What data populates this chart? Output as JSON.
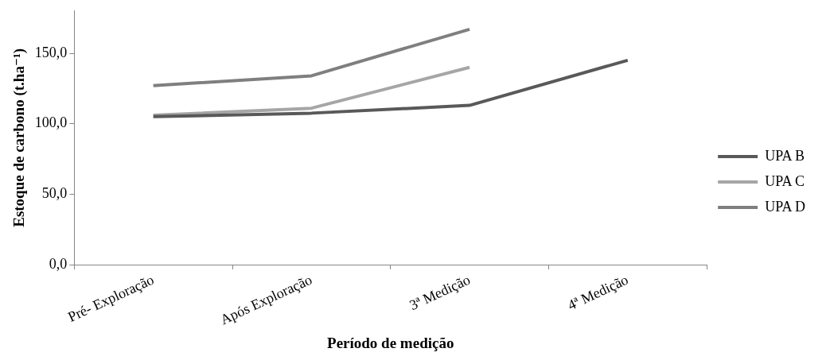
{
  "chart_data": {
    "type": "line",
    "xlabel": "Período de medição",
    "ylabel": "Estoque de carbono (t.ha⁻¹)",
    "categories": [
      "Pré- Exploração",
      "Após Exploração",
      "3ª Medição",
      "4ª Medição"
    ],
    "series": [
      {
        "name": "UPA B",
        "color": "#595959",
        "values": [
          105,
          107.5,
          113,
          145
        ]
      },
      {
        "name": "UPA C",
        "color": "#a6a6a6",
        "values": [
          106,
          111,
          140,
          null
        ]
      },
      {
        "name": "UPA D",
        "color": "#7f7f7f",
        "values": [
          127,
          134,
          167,
          null
        ]
      }
    ],
    "ylim": [
      0,
      180
    ],
    "yticks": [
      {
        "value": 0,
        "label": "0,0"
      },
      {
        "value": 50,
        "label": "50,0"
      },
      {
        "value": 100,
        "label": "100,0"
      },
      {
        "value": 150,
        "label": "150,0"
      }
    ],
    "grid": false,
    "legend": "right",
    "marker": "none",
    "line_style": "solid"
  }
}
